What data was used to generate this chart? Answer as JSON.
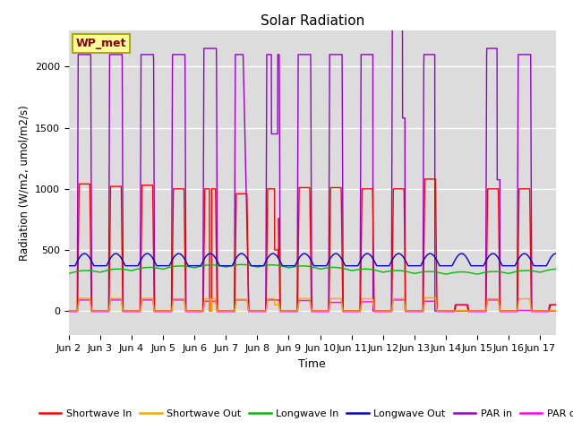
{
  "title": "Solar Radiation",
  "xlabel": "Time",
  "ylabel": "Radiation (W/m2, umol/m2/s)",
  "ylim": [
    -200,
    2300
  ],
  "xlim": [
    0,
    15.5
  ],
  "xtick_labels": [
    "Jun 2",
    "Jun 3",
    "Jun 4",
    "Jun 5",
    "Jun 6",
    "Jun 7",
    "Jun 8",
    "Jun 9",
    "Jun 10",
    "Jun 11",
    "Jun 12",
    "Jun 13",
    "Jun 14",
    "Jun 15",
    "Jun 16",
    "Jun 17"
  ],
  "xtick_positions": [
    0,
    1,
    2,
    3,
    4,
    5,
    6,
    7,
    8,
    9,
    10,
    11,
    12,
    13,
    14,
    15
  ],
  "annotation_text": "WP_met",
  "annotation_color": "#8B0000",
  "annotation_bg": "#FFFF99",
  "colors": {
    "shortwave_in": "#FF0000",
    "shortwave_out": "#FFA500",
    "longwave_in": "#00BB00",
    "longwave_out": "#0000CC",
    "par_in": "#9900CC",
    "par_out": "#FF00FF"
  },
  "bg_color": "#DCDCDC"
}
